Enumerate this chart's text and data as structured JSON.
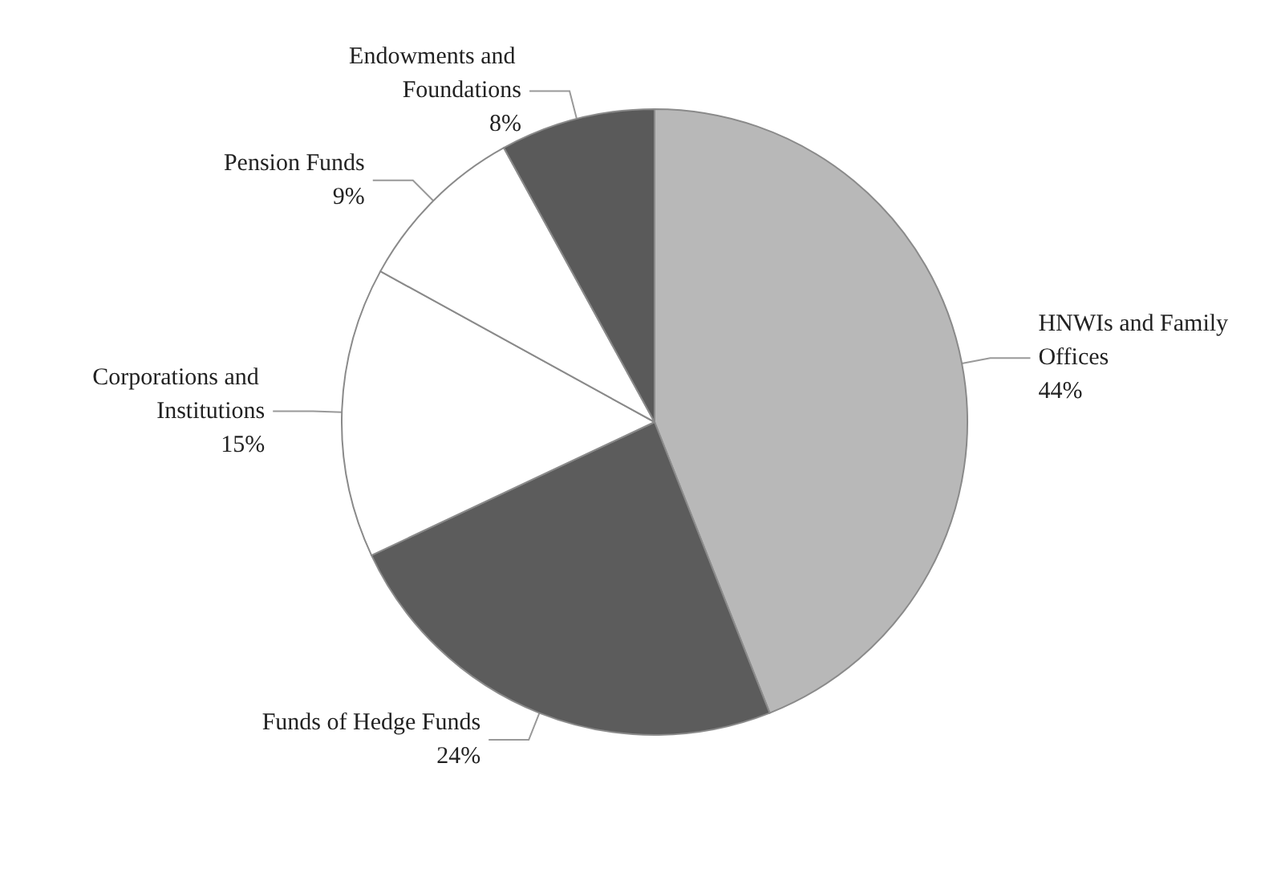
{
  "chart_data": {
    "type": "pie",
    "categories": [
      "HNWIs and Family Offices",
      "Funds of Hedge Funds",
      "Corporations and Institutions",
      "Pension Funds",
      "Endowments and Foundations"
    ],
    "values": [
      44,
      24,
      15,
      9,
      8
    ],
    "value_labels": [
      "44%",
      "24%",
      "15%",
      "9%",
      "8%"
    ],
    "colors": [
      "#b8b8b8",
      "#5c5c5c",
      "#ffffff",
      "#ffffff",
      "#5a5a5a"
    ],
    "legend": false
  }
}
